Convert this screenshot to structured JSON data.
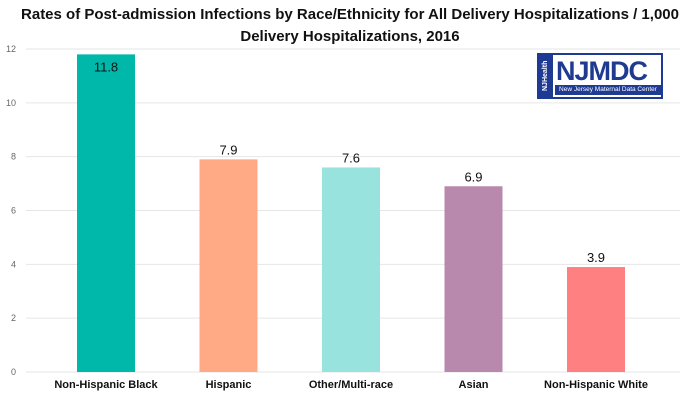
{
  "title_lines": [
    "Rates of Post-admission Infections by Race/Ethnicity for All Delivery Hospitalizations / 1,000",
    "Delivery Hospitalizations, 2016"
  ],
  "logo": {
    "side_text": "NJHealth",
    "main_text": "NJMDC",
    "sub_text": "New Jersey Maternal Data Center",
    "color": "#1f3a93"
  },
  "chart_data": {
    "type": "bar",
    "title": "Rates of Post-admission Infections by Race/Ethnicity for All Delivery Hospitalizations / 1,000 Delivery Hospitalizations, 2016",
    "categories": [
      "Non-Hispanic Black",
      "Hispanic",
      "Other/Multi-race",
      "Asian",
      "Non-Hispanic White"
    ],
    "values": [
      11.8,
      7.9,
      7.6,
      6.9,
      3.9
    ],
    "data_labels": [
      "11.8",
      "7.9",
      "7.6",
      "6.9",
      "3.9"
    ],
    "colors": [
      "#00b8a9",
      "#ffaa85",
      "#99e3de",
      "#b888ad",
      "#ff8080"
    ],
    "xlabel": "",
    "ylabel": "",
    "ylim": [
      0,
      12
    ],
    "yticks": [
      0,
      2,
      4,
      6,
      8,
      10,
      12
    ],
    "grid": true,
    "legend": "none"
  }
}
